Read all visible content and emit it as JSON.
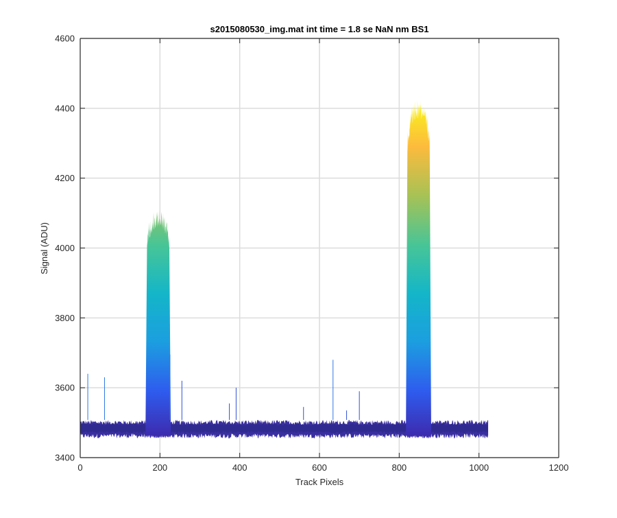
{
  "chart_data": {
    "type": "area",
    "title": "s2015080530_img.mat int time = 1.8 se  NaN nm BS1",
    "xlabel": "Track Pixels",
    "ylabel": "Signal (ADU)",
    "xlim": [
      0,
      1200
    ],
    "ylim": [
      3400,
      4600
    ],
    "xticks": [
      0,
      200,
      400,
      600,
      800,
      1000,
      1200
    ],
    "yticks": [
      3400,
      3600,
      3800,
      4000,
      4200,
      4400,
      4600
    ],
    "grid": true,
    "colormap": "parula",
    "colormap_stops": [
      "#3e26a8",
      "#2e5cee",
      "#1c9ee0",
      "#14b6c8",
      "#48c596",
      "#a7c255",
      "#fcbb3d",
      "#f9fb15"
    ],
    "baseline": {
      "x_start": 0,
      "x_end": 1023,
      "y_low": 3455,
      "y_high": 3508
    },
    "peaks": [
      {
        "x_start": 164,
        "x_end": 227,
        "y_top": 4110
      },
      {
        "x_start": 817,
        "x_end": 880,
        "y_top": 4425
      }
    ],
    "spikes": [
      {
        "x": 19,
        "y": 3640
      },
      {
        "x": 61,
        "y": 3630
      },
      {
        "x": 225,
        "y": 3695
      },
      {
        "x": 255,
        "y": 3620
      },
      {
        "x": 374,
        "y": 3555
      },
      {
        "x": 391,
        "y": 3600
      },
      {
        "x": 560,
        "y": 3545
      },
      {
        "x": 634,
        "y": 3680
      },
      {
        "x": 668,
        "y": 3535
      },
      {
        "x": 700,
        "y": 3590
      }
    ]
  }
}
